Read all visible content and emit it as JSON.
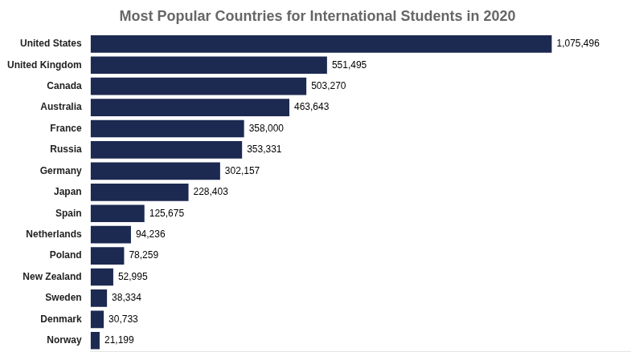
{
  "chart_data": {
    "type": "bar",
    "orientation": "horizontal",
    "title": "Most Popular Countries for International Students in 2020",
    "categories": [
      "United States",
      "United Kingdom",
      "Canada",
      "Australia",
      "France",
      "Russia",
      "Germany",
      "Japan",
      "Spain",
      "Netherlands",
      "Poland",
      "New Zealand",
      "Sweden",
      "Denmark",
      "Norway"
    ],
    "values": [
      1075496,
      551495,
      503270,
      463643,
      358000,
      353331,
      302157,
      228403,
      125675,
      94236,
      78259,
      52995,
      38334,
      30733,
      21199
    ],
    "value_labels": [
      "1,075,496",
      "551,495",
      "503,270",
      "463,643",
      "358,000",
      "353,331",
      "302,157",
      "228,403",
      "125,675",
      "94,236",
      "78,259",
      "52,995",
      "38,334",
      "30,733",
      "21,199"
    ],
    "data_labels": true,
    "color": "#1c2951",
    "xlim": [
      0,
      1258330.32
    ],
    "grid": false,
    "tick_labels": "y"
  }
}
